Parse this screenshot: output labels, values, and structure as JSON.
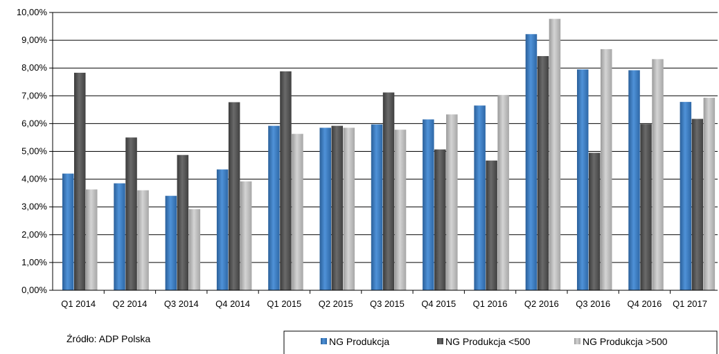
{
  "chart_data": {
    "type": "bar",
    "categories": [
      "Q1 2014",
      "Q2 2014",
      "Q3 2014",
      "Q4 2014",
      "Q1 2015",
      "Q2 2015",
      "Q3 2015",
      "Q4 2015",
      "Q1 2016",
      "Q2 2016",
      "Q3 2016",
      "Q4 2016",
      "Q1 2017"
    ],
    "series": [
      {
        "name": "NG Produkcja",
        "color": "#3f7fc6",
        "values": [
          4.2,
          3.85,
          3.4,
          4.35,
          5.92,
          5.85,
          5.97,
          6.15,
          6.65,
          9.22,
          7.95,
          7.92,
          6.78
        ]
      },
      {
        "name": "NG Produkcja <500",
        "color": "#555555",
        "values": [
          7.83,
          5.5,
          4.87,
          6.77,
          7.88,
          5.92,
          7.12,
          5.07,
          4.67,
          8.43,
          4.95,
          5.98,
          6.17
        ]
      },
      {
        "name": "NG Produkcja >500",
        "color": "#b5b5b5",
        "values": [
          3.63,
          3.6,
          2.92,
          3.92,
          5.63,
          5.85,
          5.78,
          6.33,
          7.03,
          9.77,
          8.68,
          8.32,
          6.93
        ]
      }
    ],
    "ylim": [
      0,
      10
    ],
    "yticks": [
      "0,00%",
      "1,00%",
      "2,00%",
      "3,00%",
      "4,00%",
      "5,00%",
      "6,00%",
      "7,00%",
      "8,00%",
      "9,00%",
      "10,00%"
    ],
    "grid": true,
    "legend_position": "bottom-right"
  },
  "source_note": "Źródło: ADP Polska"
}
